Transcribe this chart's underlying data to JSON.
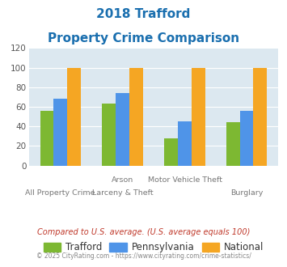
{
  "title_line1": "2018 Trafford",
  "title_line2": "Property Crime Comparison",
  "title_color": "#1a6faf",
  "cat_labels_line1": [
    "All Property Crime",
    "Arson",
    "Motor Vehicle Theft",
    "Burglary"
  ],
  "cat_labels_line2": [
    "",
    "Larceny & Theft",
    "",
    ""
  ],
  "label_row": [
    1,
    0,
    0,
    1
  ],
  "trafford": [
    56,
    63,
    28,
    44
  ],
  "pennsylvania": [
    68,
    74,
    45,
    56
  ],
  "national": [
    100,
    100,
    100,
    100
  ],
  "trafford_color": "#7db832",
  "pennsylvania_color": "#4f94e8",
  "national_color": "#f5a623",
  "ylim": [
    0,
    120
  ],
  "yticks": [
    0,
    20,
    40,
    60,
    80,
    100,
    120
  ],
  "plot_bg": "#dce8f0",
  "legend_labels": [
    "Trafford",
    "Pennsylvania",
    "National"
  ],
  "footnote1": "Compared to U.S. average. (U.S. average equals 100)",
  "footnote2": "© 2025 CityRating.com - https://www.cityrating.com/crime-statistics/",
  "footnote1_color": "#c0392b",
  "footnote2_color": "#888888"
}
